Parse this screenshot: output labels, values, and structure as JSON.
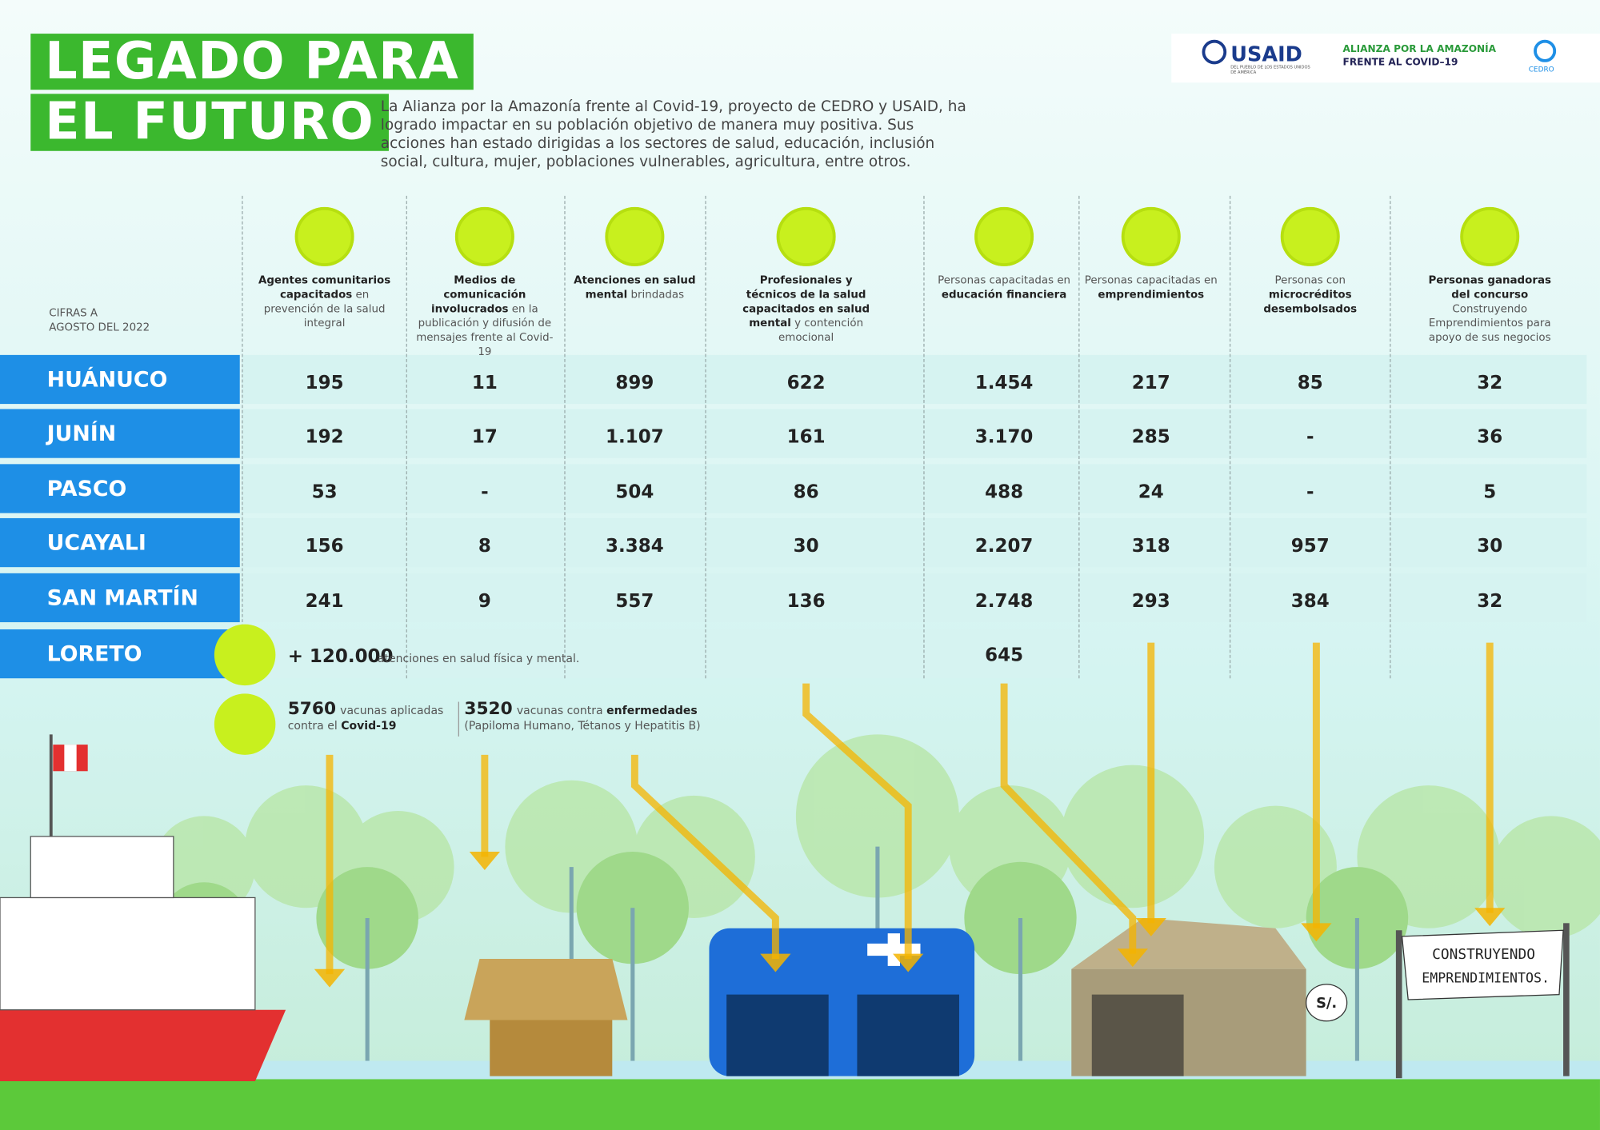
{
  "header": {
    "title_lines": [
      "LEGADO PARA",
      "EL FUTURO"
    ],
    "intro": "La Alianza por la Amazonía frente al Covid-19, proyecto de CEDRO y USAID, ha logrado impactar en su población objetivo de manera muy positiva. Sus acciones han estado dirigidas a los sectores de salud, educación, inclusión social, cultura, mujer, poblaciones vulnerables, agricultura, entre otros.",
    "logos": {
      "usaid": "USAID",
      "usaid_sub": "DEL PUEBLO DE LOS ESTADOS UNIDOS DE AMÉRICA",
      "alliance_1": "ALIANZA POR LA AMAZONÍA",
      "alliance_2": "FRENTE AL COVID–19",
      "cedro": "CEDRO"
    }
  },
  "table": {
    "date_lines": [
      "CIFRAS A",
      "AGOSTO DEL 2022"
    ],
    "columns": [
      [
        {
          "text": "Agentes comunitarios capacitados",
          "bold": true
        },
        {
          "text": " en prevención de la salud integral",
          "bold": false
        }
      ],
      [
        {
          "text": "Medios de comunicación involucrados",
          "bold": true
        },
        {
          "text": " en la publicación y difusión de mensajes frente al Covid-19",
          "bold": false
        }
      ],
      [
        {
          "text": "Atenciones en salud mental",
          "bold": true
        },
        {
          "text": " brindadas",
          "bold": false
        }
      ],
      [
        {
          "text": "Profesionales y técnicos de la salud capacitados en salud mental",
          "bold": true
        },
        {
          "text": " y contención emocional",
          "bold": false
        }
      ],
      [
        {
          "text": "Personas capacitadas en ",
          "bold": false
        },
        {
          "text": "educación financiera",
          "bold": true
        }
      ],
      [
        {
          "text": "Personas capacitadas en ",
          "bold": false
        },
        {
          "text": "emprendimientos",
          "bold": true
        }
      ],
      [
        {
          "text": "Personas con ",
          "bold": false
        },
        {
          "text": "microcréditos desembolsados",
          "bold": true
        }
      ],
      [
        {
          "text": "Personas ganadoras del concurso",
          "bold": true
        },
        {
          "text": " Construyendo Emprendimientos para apoyo de sus negocios",
          "bold": false
        }
      ]
    ],
    "rows": [
      {
        "name": "HUÁNUCO",
        "cells": [
          "195",
          "11",
          "899",
          "622",
          "1.454",
          "217",
          "85",
          "32"
        ]
      },
      {
        "name": "JUNÍN",
        "cells": [
          "192",
          "17",
          "1.107",
          "161",
          "3.170",
          "285",
          "-",
          "36"
        ]
      },
      {
        "name": "PASCO",
        "cells": [
          "53",
          "-",
          "504",
          "86",
          "488",
          "24",
          "-",
          "5"
        ]
      },
      {
        "name": "UCAYALI",
        "cells": [
          "156",
          "8",
          "3.384",
          "30",
          "2.207",
          "318",
          "957",
          "30"
        ]
      },
      {
        "name": "SAN MARTÍN",
        "cells": [
          "241",
          "9",
          "557",
          "136",
          "2.748",
          "293",
          "384",
          "32"
        ]
      }
    ],
    "loreto": {
      "name": "LORETO",
      "big": "+ 120.000",
      "text": "atenciones en salud física y mental.",
      "financial": "645"
    },
    "vaccines": [
      {
        "number": "5760",
        "text": "vacunas aplicadas",
        "line2": "contra el",
        "bold2": "Covid-19"
      },
      {
        "number": "3520",
        "text": "vacunas contra",
        "bold": "enfermedades",
        "line2": "(Papiloma Humano, Tétanos y Hepatitis B)"
      }
    ]
  },
  "scene": {
    "sign_1": "CONSTRUYENDO",
    "sign_2": "EMPRENDIMIENTOS.",
    "bubble": "S/."
  }
}
